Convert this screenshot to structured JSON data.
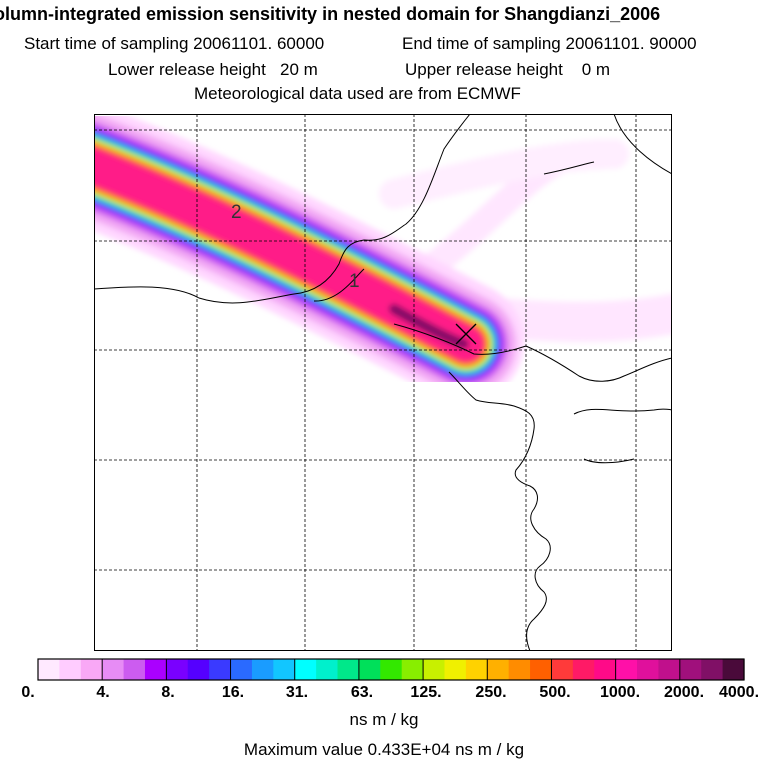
{
  "header": {
    "title": "olumn-integrated emission sensitivity in nested domain for Shangdianzi_2006",
    "start_label": "Start time of sampling",
    "start_value": "20061101. 60000",
    "end_label": "End time of sampling",
    "end_value": "20061101. 90000",
    "lower_label": "Lower release height",
    "lower_value": "20 m",
    "upper_label": "Upper release height",
    "upper_value": "0 m",
    "met_line": "Meteorological data used are from ECMWF"
  },
  "map": {
    "receptor_name": "Shangdianzi",
    "contour_labels": [
      "2",
      "1"
    ],
    "colors": {
      "land_outline": "#000000",
      "grid": "#000000",
      "frame": "#000000"
    }
  },
  "colorbar": {
    "tick_labels": [
      "0.",
      "4.",
      "8.",
      "16.",
      "31.",
      "63.",
      "125.",
      "250.",
      "500.",
      "1000.",
      "2000.",
      "4000."
    ],
    "colors": [
      "#ffe9ff",
      "#ffccff",
      "#f9a8f6",
      "#e78cf5",
      "#cc5cf0",
      "#aa00ff",
      "#7a00ff",
      "#5500ff",
      "#3a3aff",
      "#2a6aff",
      "#1a9cff",
      "#12c6ff",
      "#00ffff",
      "#00f0cc",
      "#00e88a",
      "#00e05a",
      "#33e800",
      "#88ee00",
      "#c8f000",
      "#f0f000",
      "#ffd200",
      "#ffb000",
      "#ff8c00",
      "#ff6000",
      "#ff3a3a",
      "#ff1a66",
      "#ff0a88",
      "#ff10a8",
      "#e0109c",
      "#c0108c",
      "#a0107c",
      "#801066",
      "#4a0a3a"
    ],
    "units": "ns m / kg",
    "max_value_text": "Maximum value  0.433E+04 ns m / kg"
  }
}
